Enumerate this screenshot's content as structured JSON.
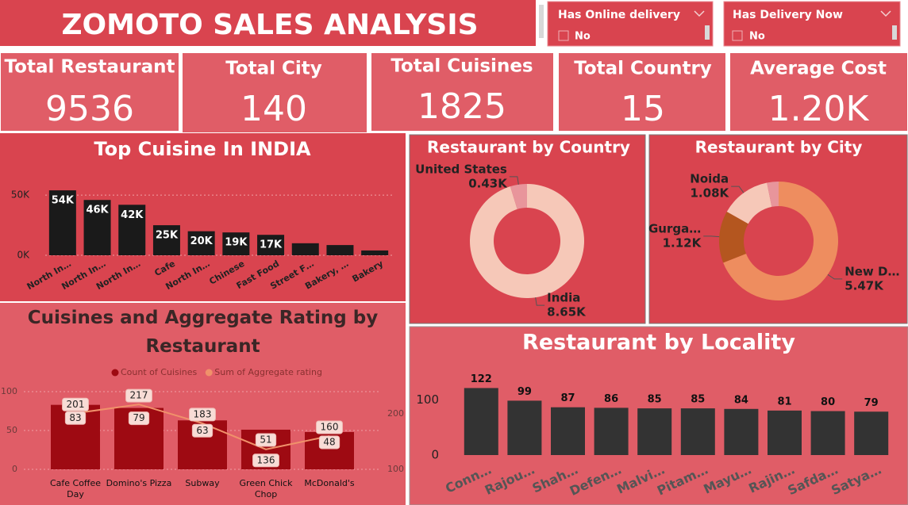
{
  "header": {
    "title": "ZOMOTO SALES ANALYSIS"
  },
  "slicers": [
    {
      "title": "Has Online delivery",
      "options": [
        "No"
      ]
    },
    {
      "title": "Has Delivery Now",
      "options": [
        "No"
      ]
    }
  ],
  "kpis": [
    {
      "label": "Total Restaurant",
      "value": "9536"
    },
    {
      "label": "Total City",
      "value": "140"
    },
    {
      "label": "Total Cuisines",
      "value": "1825"
    },
    {
      "label": "Total Country",
      "value": "15"
    },
    {
      "label": "Average Cost",
      "value": "1.20K"
    }
  ],
  "chart_data": [
    {
      "type": "bar",
      "title": "Top Cuisine In INDIA",
      "categories": [
        "North In…",
        "North In…",
        "North In…",
        "Cafe",
        "North In…",
        "Chinese",
        "Fast Food",
        "Street F…",
        "Bakery, …",
        "Bakery"
      ],
      "values": [
        54000,
        46000,
        42000,
        25000,
        20000,
        19000,
        17000,
        10000,
        8500,
        4000
      ],
      "value_labels": [
        "54K",
        "46K",
        "42K",
        "25K",
        "20K",
        "19K",
        "17K",
        null,
        null,
        null
      ],
      "label_position": "inside_end",
      "color": "#1a1a1a",
      "ylim": [
        0,
        60000
      ],
      "yticks": [
        {
          "value": 0,
          "label": "0K"
        },
        {
          "value": 50000,
          "label": "50K"
        }
      ],
      "grid": true
    },
    {
      "type": "donut",
      "title": "Restaurant by Country",
      "categories": [
        "India",
        "United States"
      ],
      "values": [
        8650,
        430
      ],
      "value_labels": [
        "8.65K",
        "0.43K"
      ],
      "colors": [
        "#f6c8b8",
        "#e8959b"
      ]
    },
    {
      "type": "donut",
      "title": "Restaurant by City",
      "categories": [
        "New D…",
        "Gurga…",
        "Noida",
        null
      ],
      "values": [
        5470,
        1120,
        1080,
        250
      ],
      "value_labels": [
        "5.47K",
        "1.12K",
        "1.08K",
        null
      ],
      "colors": [
        "#ee8d5f",
        "#b4561f",
        "#f6c8b8",
        "#e8959b"
      ]
    },
    {
      "type": "combo",
      "title": "Cuisines and Aggregate Rating by Restaurant",
      "categories": [
        "Cafe Coffee Day",
        "Domino's Pizza",
        "Subway",
        "Green Chick Chop",
        "McDonald's"
      ],
      "series": [
        {
          "name": "Count of Cuisines",
          "type": "bar",
          "color": "#9e0a12",
          "values": [
            83,
            79,
            63,
            51,
            48
          ]
        },
        {
          "name": "Sum of Aggregate rating",
          "type": "line",
          "axis": "y2",
          "color": "#f0916a",
          "values": [
            201,
            217,
            183,
            136,
            160
          ]
        }
      ],
      "ylim": [
        0,
        100
      ],
      "yticks": [
        0,
        50,
        100
      ],
      "y2lim": [
        100,
        240
      ],
      "y2ticks": [
        100,
        200
      ],
      "grid": true
    },
    {
      "type": "bar",
      "title": "Restaurant by Locality",
      "categories": [
        "Conn…",
        "Rajou…",
        "Shah…",
        "Defen…",
        "Malvi…",
        "Pitam…",
        "Mayu…",
        "Rajin…",
        "Safda…",
        "Satya…"
      ],
      "values": [
        122,
        99,
        87,
        86,
        85,
        85,
        84,
        81,
        80,
        79
      ],
      "label_position": "outside_end",
      "color": "#333333",
      "ylim": [
        0,
        140
      ],
      "yticks": [
        0,
        100
      ],
      "grid": false
    }
  ]
}
